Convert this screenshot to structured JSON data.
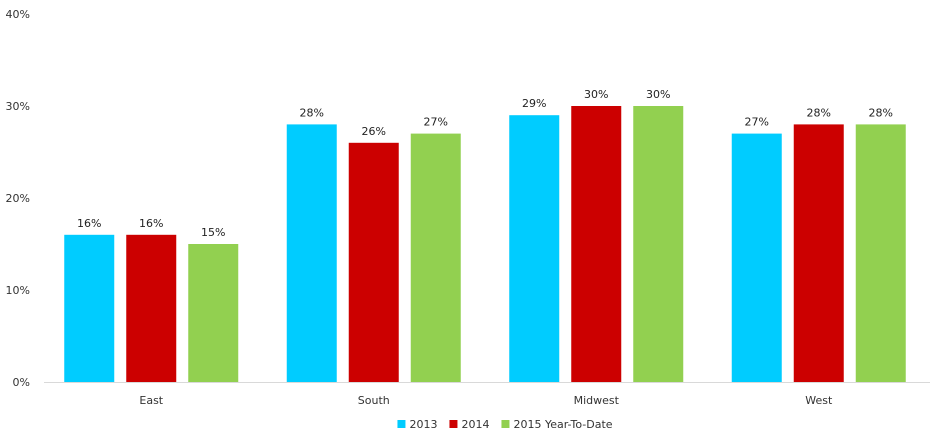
{
  "chart_data": {
    "type": "bar",
    "categories": [
      "East",
      "South",
      "Midwest",
      "West"
    ],
    "series": [
      {
        "name": "2013",
        "color": "#00CCFF",
        "values": [
          16,
          28,
          29,
          27
        ],
        "labels": [
          "16%",
          "28%",
          "29%",
          "27%"
        ]
      },
      {
        "name": "2014",
        "color": "#CC0000",
        "values": [
          16,
          26,
          30,
          28
        ],
        "labels": [
          "16%",
          "26%",
          "30%",
          "28%"
        ]
      },
      {
        "name": "2015 Year-To-Date",
        "color": "#92D050",
        "values": [
          15,
          27,
          30,
          28
        ],
        "labels": [
          "15%",
          "27%",
          "30%",
          "28%"
        ]
      }
    ],
    "ylim": [
      0,
      40
    ],
    "yticks": [
      0,
      10,
      20,
      30,
      40
    ],
    "ytick_labels": [
      "0%",
      "10%",
      "20%",
      "30%",
      "40%"
    ],
    "grid": false,
    "legend": "bottom-center"
  }
}
